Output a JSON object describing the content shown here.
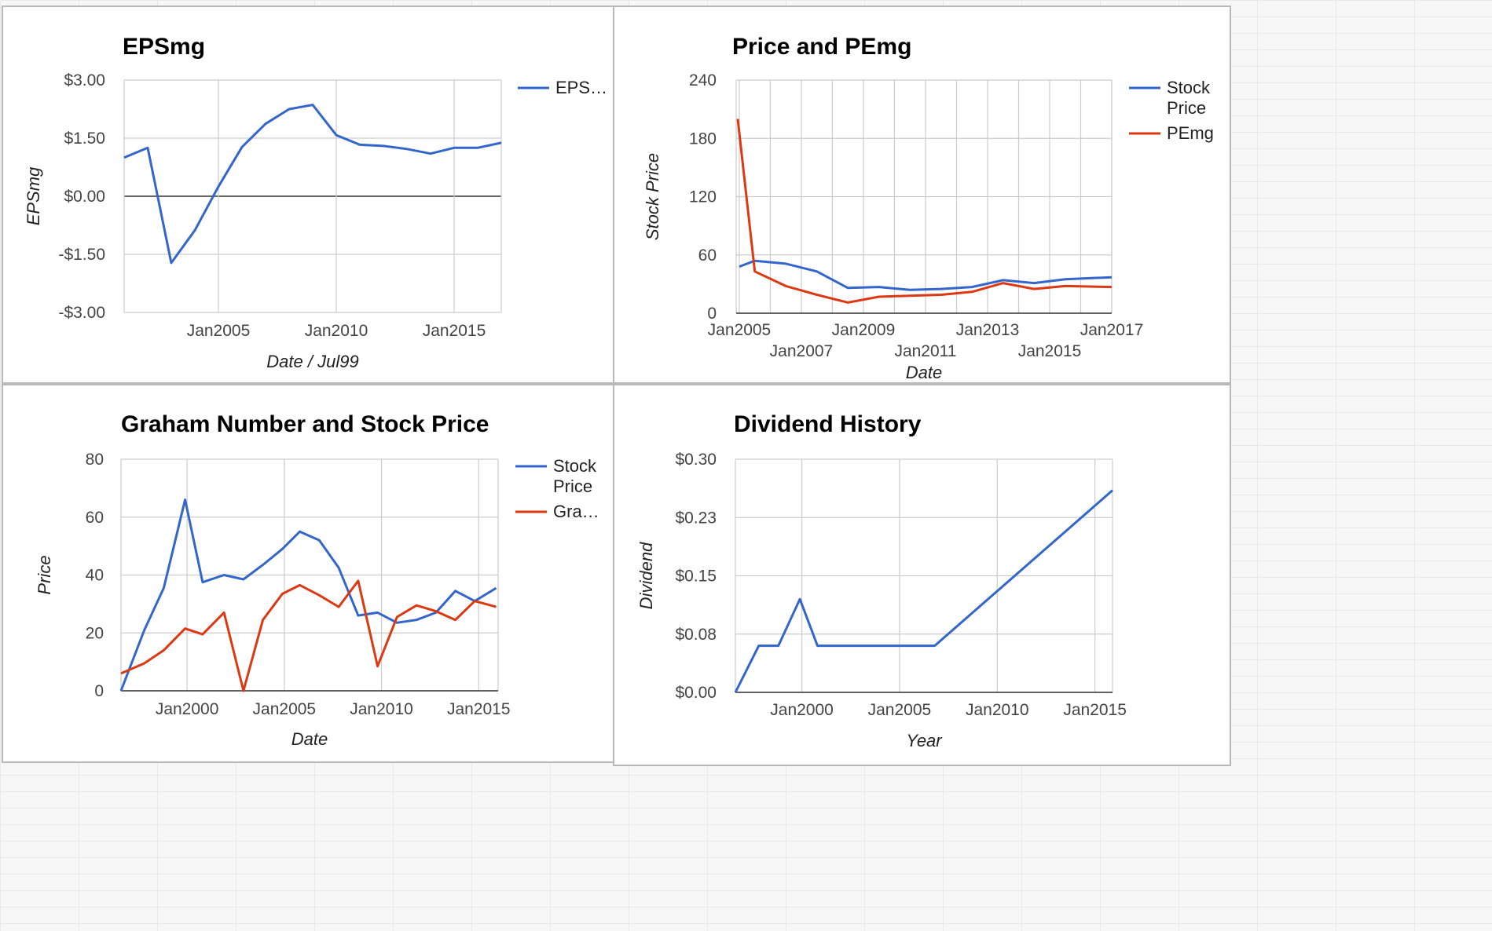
{
  "chart_data": [
    {
      "type": "line",
      "title": "EPSmg",
      "xlabel": "Date / Jul99",
      "ylabel": "EPSmg",
      "x_tick_labels": [
        "Jan2005",
        "Jan2010",
        "Jan2015"
      ],
      "y_tick_labels": [
        "$3.00",
        "$1.50",
        "$0.00",
        "-$1.50",
        "-$3.00"
      ],
      "ylim": [
        -3,
        3
      ],
      "grid": true,
      "legend_position": "right",
      "series": [
        {
          "name": "EPS…",
          "color": "#3366cc",
          "points": [
            {
              "x": 2001.0,
              "y": 1.0
            },
            {
              "x": 2002.0,
              "y": 1.25
            },
            {
              "x": 2003.0,
              "y": -1.72
            },
            {
              "x": 2004.0,
              "y": -0.88
            },
            {
              "x": 2005.0,
              "y": 0.25
            },
            {
              "x": 2006.0,
              "y": 1.27
            },
            {
              "x": 2007.0,
              "y": 1.87
            },
            {
              "x": 2008.0,
              "y": 2.25
            },
            {
              "x": 2009.0,
              "y": 2.36
            },
            {
              "x": 2010.0,
              "y": 1.58
            },
            {
              "x": 2011.0,
              "y": 1.33
            },
            {
              "x": 2012.0,
              "y": 1.3
            },
            {
              "x": 2013.0,
              "y": 1.22
            },
            {
              "x": 2014.0,
              "y": 1.1
            },
            {
              "x": 2015.0,
              "y": 1.25
            },
            {
              "x": 2016.0,
              "y": 1.25
            },
            {
              "x": 2017.0,
              "y": 1.38
            }
          ]
        }
      ]
    },
    {
      "type": "line",
      "title": "Price and PEmg",
      "xlabel": "Date",
      "ylabel": "Stock Price",
      "x_tick_labels": [
        "Jan2005",
        "Jan2007",
        "Jan2009",
        "Jan2011",
        "Jan2013",
        "Jan2015",
        "Jan2017"
      ],
      "y_tick_labels": [
        "240",
        "180",
        "120",
        "60",
        "0"
      ],
      "ylim": [
        0,
        240
      ],
      "grid": true,
      "legend_position": "right",
      "series": [
        {
          "name": "Stock Price",
          "color": "#3366cc",
          "points": [
            {
              "x": 2005.0,
              "y": 48
            },
            {
              "x": 2005.5,
              "y": 54
            },
            {
              "x": 2006.5,
              "y": 51
            },
            {
              "x": 2007.5,
              "y": 43
            },
            {
              "x": 2008.5,
              "y": 26
            },
            {
              "x": 2009.5,
              "y": 27
            },
            {
              "x": 2010.5,
              "y": 24
            },
            {
              "x": 2011.5,
              "y": 25
            },
            {
              "x": 2012.5,
              "y": 27
            },
            {
              "x": 2013.5,
              "y": 34
            },
            {
              "x": 2014.5,
              "y": 31
            },
            {
              "x": 2015.5,
              "y": 35
            },
            {
              "x": 2017.0,
              "y": 37
            }
          ]
        },
        {
          "name": "PEmg",
          "color": "#dc3912",
          "points": [
            {
              "x": 2004.95,
              "y": 200
            },
            {
              "x": 2005.5,
              "y": 43
            },
            {
              "x": 2006.5,
              "y": 28
            },
            {
              "x": 2007.5,
              "y": 19
            },
            {
              "x": 2008.5,
              "y": 11
            },
            {
              "x": 2009.5,
              "y": 17
            },
            {
              "x": 2010.5,
              "y": 18
            },
            {
              "x": 2011.5,
              "y": 19
            },
            {
              "x": 2012.5,
              "y": 22
            },
            {
              "x": 2013.5,
              "y": 31
            },
            {
              "x": 2014.5,
              "y": 25
            },
            {
              "x": 2015.5,
              "y": 28
            },
            {
              "x": 2017.0,
              "y": 27
            }
          ]
        }
      ]
    },
    {
      "type": "line",
      "title": "Graham Number and Stock Price",
      "xlabel": "Date",
      "ylabel": "Price",
      "x_tick_labels": [
        "Jan2000",
        "Jan2005",
        "Jan2010",
        "Jan2015"
      ],
      "y_tick_labels": [
        "80",
        "60",
        "40",
        "20",
        "0"
      ],
      "ylim": [
        0,
        80
      ],
      "grid": true,
      "legend_position": "right",
      "series": [
        {
          "name": "Stock Price",
          "color": "#3366cc",
          "points": [
            {
              "x": 1996.6,
              "y": 0
            },
            {
              "x": 1997.8,
              "y": 21
            },
            {
              "x": 1998.8,
              "y": 35.5
            },
            {
              "x": 1999.9,
              "y": 66
            },
            {
              "x": 2000.8,
              "y": 37.5
            },
            {
              "x": 2001.9,
              "y": 40
            },
            {
              "x": 2002.9,
              "y": 38.5
            },
            {
              "x": 2003.9,
              "y": 43.5
            },
            {
              "x": 2004.9,
              "y": 49
            },
            {
              "x": 2005.8,
              "y": 55
            },
            {
              "x": 2006.8,
              "y": 52
            },
            {
              "x": 2007.8,
              "y": 42.5
            },
            {
              "x": 2008.8,
              "y": 26
            },
            {
              "x": 2009.8,
              "y": 27
            },
            {
              "x": 2010.8,
              "y": 23.5
            },
            {
              "x": 2011.8,
              "y": 24.5
            },
            {
              "x": 2012.8,
              "y": 27
            },
            {
              "x": 2013.8,
              "y": 34.5
            },
            {
              "x": 2014.8,
              "y": 31
            },
            {
              "x": 2015.9,
              "y": 35.5
            }
          ]
        },
        {
          "name": "Gra…",
          "color": "#dc3912",
          "points": [
            {
              "x": 1996.6,
              "y": 6
            },
            {
              "x": 1997.8,
              "y": 9.5
            },
            {
              "x": 1998.8,
              "y": 14
            },
            {
              "x": 1999.9,
              "y": 21.5
            },
            {
              "x": 2000.8,
              "y": 19.5
            },
            {
              "x": 2001.9,
              "y": 27
            },
            {
              "x": 2002.9,
              "y": 0
            },
            {
              "x": 2003.9,
              "y": 24.5
            },
            {
              "x": 2004.9,
              "y": 33.5
            },
            {
              "x": 2005.8,
              "y": 36.5
            },
            {
              "x": 2006.8,
              "y": 33
            },
            {
              "x": 2007.8,
              "y": 29
            },
            {
              "x": 2008.8,
              "y": 38
            },
            {
              "x": 2009.8,
              "y": 8.5
            },
            {
              "x": 2010.8,
              "y": 25.5
            },
            {
              "x": 2011.8,
              "y": 29.5
            },
            {
              "x": 2012.8,
              "y": 27.5
            },
            {
              "x": 2013.8,
              "y": 24.5
            },
            {
              "x": 2014.8,
              "y": 31
            },
            {
              "x": 2015.9,
              "y": 29
            }
          ]
        }
      ]
    },
    {
      "type": "line",
      "title": "Dividend History",
      "xlabel": "Year",
      "ylabel": "Dividend",
      "x_tick_labels": [
        "Jan2000",
        "Jan2005",
        "Jan2010",
        "Jan2015"
      ],
      "y_tick_labels": [
        "$0.30",
        "$0.23",
        "$0.15",
        "$0.08",
        "$0.00"
      ],
      "ylim": [
        0,
        0.3
      ],
      "grid": true,
      "legend_position": "none",
      "series": [
        {
          "color": "#3366cc",
          "points": [
            {
              "x": 1996.6,
              "y": 0.0
            },
            {
              "x": 1997.8,
              "y": 0.06
            },
            {
              "x": 1998.8,
              "y": 0.06
            },
            {
              "x": 1999.9,
              "y": 0.12
            },
            {
              "x": 2000.8,
              "y": 0.06
            },
            {
              "x": 2006.8,
              "y": 0.06
            },
            {
              "x": 2015.9,
              "y": 0.26
            }
          ]
        }
      ]
    }
  ]
}
